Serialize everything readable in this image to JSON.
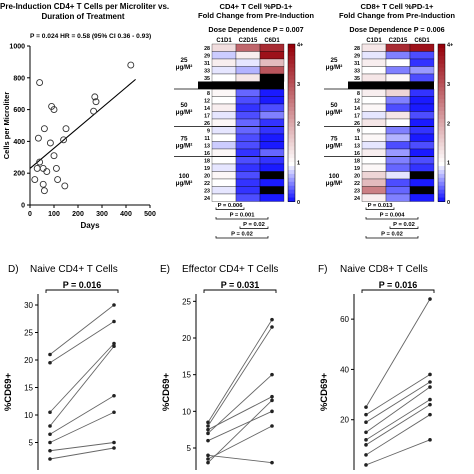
{
  "scatter": {
    "title1": "Pre-Induction CD4+ T Cells per Microliter vs.",
    "title2": "Duration of Treatment",
    "stat": "P = 0.024 HR = 0.58 (95% CI 0.36 - 0.93)",
    "xlabel": "Days",
    "ylabel": "Cells per Microliter"
  },
  "heatmap_cd4": {
    "title1": "CD4+ T Cell %PD-1+",
    "title2": "Fold Change from Pre-Induction",
    "dose": "Dose Dependence P = 0.007",
    "columns": [
      "C1D1",
      "C2D15",
      "C6D1"
    ],
    "groups": [
      "25 μg/M²",
      "50 μg/M²",
      "75 μg/M²",
      "100 μg/M²"
    ],
    "pvals": [
      "P = 0.006",
      "P = 0.001",
      "P = 0.02",
      "P = 0.02"
    ]
  },
  "heatmap_cd8": {
    "title1": "CD8+ T Cell %PD-1+",
    "title2": "Fold Change from Pre-Induction",
    "dose": "Dose Dependence P = 0.006",
    "columns": [
      "C1D1",
      "C2D15",
      "C6D1"
    ],
    "groups": [
      "25 μg/M²",
      "50 μg/M²",
      "75 μg/M²",
      "100 μg/M²"
    ],
    "pvals": [
      "P = 0.013",
      "P = 0.004",
      "P = 0.02",
      "P = 0.02"
    ]
  },
  "panel_d": {
    "letter": "D)",
    "title": "Naive CD4+ T Cells",
    "pvalue": "P = 0.016",
    "ylabel": "%CD69+"
  },
  "panel_e": {
    "letter": "E)",
    "title": "Effector CD4+ T Cells",
    "pvalue": "P = 0.031",
    "ylabel": "%CD69+"
  },
  "panel_f": {
    "letter": "F)",
    "title": "Naive CD8+ T Cells",
    "pvalue": "P = 0.016",
    "ylabel": "%CD69+"
  },
  "chart_data": [
    {
      "type": "scatter",
      "title": "Pre-Induction CD4+ T Cells per Microliter vs. Duration of Treatment",
      "xlabel": "Days",
      "ylabel": "Cells per Microliter",
      "xlim": [
        0,
        500
      ],
      "ylim": [
        0,
        1000
      ],
      "xticks": [
        0,
        100,
        200,
        300,
        400,
        500
      ],
      "yticks": [
        0,
        200,
        400,
        600,
        800,
        1000
      ],
      "points": [
        [
          20,
          160
        ],
        [
          30,
          230
        ],
        [
          35,
          420
        ],
        [
          40,
          270
        ],
        [
          40,
          770
        ],
        [
          55,
          230
        ],
        [
          55,
          130
        ],
        [
          60,
          90
        ],
        [
          60,
          480
        ],
        [
          70,
          210
        ],
        [
          85,
          390
        ],
        [
          90,
          620
        ],
        [
          100,
          310
        ],
        [
          100,
          600
        ],
        [
          110,
          230
        ],
        [
          115,
          160
        ],
        [
          140,
          410
        ],
        [
          145,
          120
        ],
        [
          150,
          480
        ],
        [
          265,
          590
        ],
        [
          270,
          680
        ],
        [
          275,
          650
        ],
        [
          420,
          880
        ]
      ],
      "trendline": [
        [
          0,
          230
        ],
        [
          440,
          790
        ]
      ]
    },
    {
      "type": "heatmap",
      "title": "CD4+ T Cell %PD-1+ Fold Change from Pre-Induction",
      "columns": [
        "C1D1",
        "C2D15",
        "C6D1"
      ],
      "row_labels": [
        "28",
        "29",
        "31",
        "33",
        "35",
        "5",
        "8",
        "12",
        "14",
        "17",
        "26",
        "9",
        "11",
        "13",
        "16",
        "18",
        "19",
        "20",
        "22",
        "23",
        "24"
      ],
      "colorbar_ticks": [
        0,
        1,
        2,
        3,
        4
      ],
      "colorbar_top_label": "4+",
      "values": [
        [
          1.4,
          2.8,
          3.5
        ],
        [
          0.8,
          1.2,
          3.8
        ],
        [
          1.2,
          0.9,
          1.8
        ],
        [
          0.9,
          0.7,
          3.0
        ],
        [
          1.0,
          1.3,
          null
        ],
        [
          null,
          null,
          null
        ],
        [
          1.1,
          0.4,
          0.1
        ],
        [
          1.0,
          0.3,
          0.1
        ],
        [
          1.2,
          0.2,
          0.3
        ],
        [
          0.9,
          0.3,
          0.5
        ],
        [
          1.1,
          0.4,
          0.2
        ],
        [
          0.9,
          0.4,
          0.2
        ],
        [
          1.0,
          0.3,
          0.1
        ],
        [
          0.8,
          0.3,
          0.1
        ],
        [
          1.1,
          0.2,
          0.4
        ],
        [
          1.0,
          0.3,
          0.2
        ],
        [
          0.9,
          0.2,
          0.1
        ],
        [
          1.1,
          0.3,
          null
        ],
        [
          1.0,
          0.2,
          0.1
        ],
        [
          0.9,
          0.2,
          null
        ],
        [
          1.0,
          0.3,
          0.1
        ]
      ],
      "groups": [
        "25 μg/M²",
        "50 μg/M²",
        "75 μg/M²",
        "100 μg/M²"
      ],
      "significance": [
        "P = 0.006",
        "P = 0.001",
        "P = 0.02",
        "P = 0.02"
      ]
    },
    {
      "type": "heatmap",
      "title": "CD8+ T Cell %PD-1+ Fold Change from Pre-Induction",
      "columns": [
        "C1D1",
        "C2D15",
        "C6D1"
      ],
      "row_labels": [
        "28",
        "29",
        "31",
        "33",
        "35",
        "5",
        "8",
        "12",
        "14",
        "17",
        "26",
        "9",
        "11",
        "13",
        "16",
        "18",
        "19",
        "20",
        "22",
        "23",
        "24"
      ],
      "colorbar_ticks": [
        0,
        1,
        2,
        3,
        4
      ],
      "colorbar_top_label": "4+",
      "values": [
        [
          1.3,
          3.5,
          3.8
        ],
        [
          0.9,
          0.5,
          0.3
        ],
        [
          1.2,
          1.0,
          0.2
        ],
        [
          1.0,
          0.5,
          0.6
        ],
        [
          1.3,
          1.1,
          0.3
        ],
        [
          null,
          null,
          null
        ],
        [
          1.2,
          1.5,
          0.2
        ],
        [
          1.0,
          0.5,
          0.1
        ],
        [
          1.1,
          0.3,
          0.1
        ],
        [
          0.9,
          1.3,
          0.3
        ],
        [
          1.3,
          1.0,
          0.1
        ],
        [
          1.0,
          0.5,
          0.2
        ],
        [
          1.1,
          0.7,
          0.1
        ],
        [
          0.9,
          0.3,
          0.3
        ],
        [
          1.2,
          0.6,
          0.1
        ],
        [
          1.0,
          0.5,
          0.3
        ],
        [
          1.1,
          0.4,
          0.2
        ],
        [
          1.5,
          0.9,
          null
        ],
        [
          1.8,
          0.3,
          0.1
        ],
        [
          2.5,
          0.4,
          null
        ],
        [
          1.2,
          0.5,
          0.1
        ]
      ],
      "groups": [
        "25 μg/M²",
        "50 μg/M²",
        "75 μg/M²",
        "100 μg/M²"
      ],
      "significance": [
        "P = 0.013",
        "P = 0.004",
        "P = 0.02",
        "P = 0.02"
      ]
    },
    {
      "type": "line",
      "title": "Naive CD4+ T Cells",
      "ylabel": "%CD69+",
      "ylim": [
        0,
        32
      ],
      "yticks": [
        5,
        10,
        15,
        20,
        25,
        30
      ],
      "pairs": [
        [
          21,
          30
        ],
        [
          19.5,
          27
        ],
        [
          10.5,
          23
        ],
        [
          8,
          22.5
        ],
        [
          6.5,
          13.5
        ],
        [
          5,
          10.5
        ],
        [
          3.5,
          5
        ],
        [
          2,
          4
        ]
      ]
    },
    {
      "type": "line",
      "title": "Effector CD4+ T Cells",
      "ylabel": "%CD69+",
      "ylim": [
        2,
        26
      ],
      "yticks": [
        5,
        10,
        15,
        20,
        25
      ],
      "pairs": [
        [
          8.5,
          22.5
        ],
        [
          8,
          21.5
        ],
        [
          7.5,
          12
        ],
        [
          7,
          15
        ],
        [
          6,
          10
        ],
        [
          4,
          3
        ],
        [
          3.5,
          8
        ],
        [
          3,
          11.5
        ]
      ]
    },
    {
      "type": "line",
      "title": "Naive CD8+ T Cells",
      "ylabel": "%CD69+",
      "ylim": [
        0,
        70
      ],
      "yticks": [
        20,
        40,
        60
      ],
      "pairs": [
        [
          25,
          68
        ],
        [
          22,
          38
        ],
        [
          19,
          35
        ],
        [
          15,
          33
        ],
        [
          12,
          28
        ],
        [
          10,
          26
        ],
        [
          6,
          22
        ],
        [
          2,
          12
        ]
      ]
    }
  ]
}
